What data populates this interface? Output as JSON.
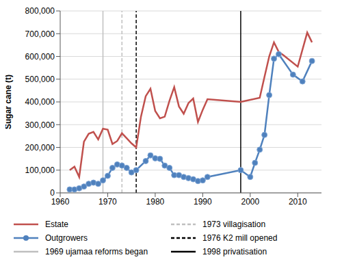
{
  "chart_data": {
    "type": "line",
    "y_label": "Sugar cane (t)",
    "xlim": [
      1960,
      2015
    ],
    "xticks": [
      1960,
      1970,
      1980,
      1990,
      2000,
      2010
    ],
    "ylim": [
      0,
      800000
    ],
    "yticks": [
      0,
      {
        "value": 100000,
        "label": "100,000"
      },
      {
        "value": 200000,
        "label": "200,000"
      },
      {
        "value": 300000,
        "label": "300,000"
      },
      {
        "value": 400000,
        "label": "400,000"
      },
      {
        "value": 500000,
        "label": "500,000"
      },
      {
        "value": 600000,
        "label": "600,000"
      },
      {
        "value": 700000,
        "label": "700,000"
      },
      {
        "value": 800000,
        "label": "800,000"
      }
    ],
    "grid": true,
    "legend": "bottom",
    "series": [
      {
        "name": "Estate",
        "color": "#c0504d",
        "marker": "none",
        "x": [
          1962,
          1963,
          1964,
          1965,
          1966,
          1967,
          1968,
          1969,
          1970,
          1971,
          1972,
          1973,
          1974,
          1975,
          1976,
          1977,
          1978,
          1979,
          1980,
          1981,
          1982,
          1983,
          1984,
          1985,
          1986,
          1987,
          1988,
          1989,
          1990,
          1991,
          1998,
          2002,
          2003,
          2004,
          2005,
          2006,
          2007,
          2010,
          2012,
          2013
        ],
        "values": [
          100000,
          115000,
          70000,
          225000,
          260000,
          268000,
          235000,
          282000,
          278000,
          215000,
          228000,
          262000,
          240000,
          218000,
          200000,
          335000,
          425000,
          458000,
          360000,
          328000,
          335000,
          405000,
          465000,
          380000,
          348000,
          395000,
          415000,
          312000,
          365000,
          412000,
          400000,
          418000,
          510000,
          600000,
          662000,
          620000,
          605000,
          555000,
          705000,
          662000
        ]
      },
      {
        "name": "Outgrowers",
        "color": "#4f81bd",
        "marker": "circle",
        "x": [
          1962,
          1963,
          1964,
          1965,
          1966,
          1967,
          1968,
          1969,
          1970,
          1971,
          1972,
          1973,
          1974,
          1975,
          1976,
          1978,
          1979,
          1980,
          1981,
          1982,
          1983,
          1984,
          1985,
          1986,
          1987,
          1988,
          1989,
          1990,
          1991,
          1998,
          2000,
          2001,
          2002,
          2003,
          2004,
          2005,
          2006,
          2009,
          2011,
          2013
        ],
        "values": [
          15000,
          15000,
          20000,
          28000,
          40000,
          45000,
          40000,
          55000,
          75000,
          110000,
          125000,
          120000,
          110000,
          90000,
          100000,
          140000,
          165000,
          152000,
          150000,
          120000,
          110000,
          78000,
          78000,
          70000,
          65000,
          60000,
          52000,
          55000,
          70000,
          100000,
          70000,
          132000,
          190000,
          255000,
          430000,
          590000,
          610000,
          520000,
          490000,
          580000
        ]
      }
    ],
    "annotations": [
      {
        "x": 1969,
        "label": "1969 ujamaa reforms began",
        "color": "#bfbfbf",
        "line_style": "solid"
      },
      {
        "x": 1973,
        "label": "1973 villagisation",
        "color": "#bfbfbf",
        "line_style": "dashed"
      },
      {
        "x": 1976,
        "label": "1976 K2 mill opened",
        "color": "#000000",
        "line_style": "dashed"
      },
      {
        "x": 1998,
        "label": "1998 privatisation",
        "color": "#000000",
        "line_style": "solid"
      }
    ]
  }
}
